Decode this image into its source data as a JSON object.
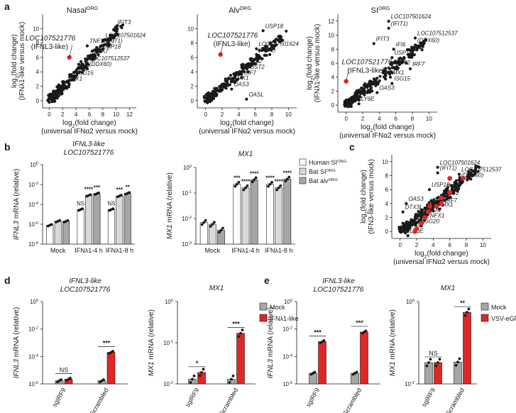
{
  "panel_letters": [
    "a",
    "b",
    "c",
    "d",
    "e"
  ],
  "colors": {
    "point": "#1a1a1a",
    "highlight": "#e02727",
    "mock": "#a6a6a6",
    "treated": "#e02727",
    "human": "#ffffff",
    "bat_si": "#d9d9d9",
    "bat_alv": "#a6a6a6",
    "axis": "#1a1a1a"
  },
  "chart_data": [
    {
      "id": "a1",
      "type": "scatter",
      "title": "Nasal",
      "title_sup": "ORG",
      "xlabel": [
        "log2(fold change)",
        "(universal IFNα2 versus mock)"
      ],
      "ylabel": [
        "log2(fold change)",
        "(IFNλ1-like versus mock)"
      ],
      "xlim": [
        -1,
        13
      ],
      "ylim": [
        -1,
        12
      ],
      "xticks": [
        0,
        2,
        4,
        6,
        8,
        10,
        12
      ],
      "yticks": [
        0,
        2,
        4,
        6,
        8,
        10
      ],
      "highlight": {
        "x": 3.0,
        "y": 6.0,
        "label": "LOC107521776",
        "label2": "(IFNL3-like)"
      },
      "labels": [
        {
          "text": "IFIT3",
          "x": 10.2,
          "y": 10.6
        },
        {
          "text": "TNFSF10",
          "x": 6.0,
          "y": 8.0
        },
        {
          "text": "LOC107501624",
          "x": 8.4,
          "y": 8.8
        },
        {
          "text": "(IFIT1)",
          "x": 8.4,
          "y": 8.0
        },
        {
          "text": "USP18",
          "x": 8.0,
          "y": 7.2
        },
        {
          "text": "UBA7",
          "x": 6.6,
          "y": 6.6
        },
        {
          "text": "LOC107512537",
          "x": 6.0,
          "y": 5.6
        },
        {
          "text": "IRF7",
          "x": 4.2,
          "y": 4.4
        },
        {
          "text": "(DDX60)",
          "x": 6.0,
          "y": 4.8
        },
        {
          "text": "ISG15",
          "x": 4.2,
          "y": 3.6
        },
        {
          "text": "MX1",
          "x": 3.2,
          "y": 2.8
        }
      ]
    },
    {
      "id": "a2",
      "type": "scatter",
      "title": "Alv",
      "title_sup": "ORG",
      "xlabel": [
        "log2(fold change)",
        "(universal IFNα2 versus mock)"
      ],
      "ylabel": [],
      "xlim": [
        -1,
        11
      ],
      "ylim": [
        -1,
        12
      ],
      "xticks": [
        0,
        2,
        4,
        6,
        8,
        10
      ],
      "yticks": [
        0,
        2,
        4,
        6,
        8,
        10
      ],
      "highlight": {
        "x": 1.8,
        "y": 6.4,
        "label": "LOC107521776",
        "label2": "(IFNL3-like)"
      },
      "labels": [
        {
          "text": "USP18",
          "x": 7.2,
          "y": 10.1
        },
        {
          "text": "LOC107501624",
          "x": 6.4,
          "y": 7.6
        },
        {
          "text": "(IFIT1)",
          "x": 6.4,
          "y": 6.8
        },
        {
          "text": "MX2",
          "x": 5.4,
          "y": 5.2
        },
        {
          "text": "BST2",
          "x": 5.4,
          "y": 4.4
        },
        {
          "text": "IRF7",
          "x": 4.6,
          "y": 3.6
        },
        {
          "text": "MX1",
          "x": 3.8,
          "y": 2.9
        },
        {
          "text": "OAS3",
          "x": 3.4,
          "y": 2.0
        },
        {
          "text": "OASL",
          "x": 5.2,
          "y": 0.6
        }
      ]
    },
    {
      "id": "a3",
      "type": "scatter",
      "title": "SI",
      "title_sup": "ORG",
      "xlabel": [
        "log2(fold change)",
        "(universal IFNα2 versus mock)"
      ],
      "ylabel": [
        "log2(fold change)",
        "(IFNλ1-like versus mock)"
      ],
      "xlim": [
        -1,
        11
      ],
      "ylim": [
        -1,
        13
      ],
      "xticks": [
        0,
        2,
        4,
        6,
        8,
        10
      ],
      "yticks": [
        0,
        2,
        4,
        6,
        8,
        10,
        12
      ],
      "highlight": {
        "x": 0.0,
        "y": 3.4,
        "label": "LOC107521776",
        "label2": "(IFNL3-like)"
      },
      "labels": [
        {
          "text": "LOC107501624",
          "x": 5.4,
          "y": 12.4
        },
        {
          "text": "(IFIT1)",
          "x": 5.4,
          "y": 11.4
        },
        {
          "text": "LOC107512537",
          "x": 8.6,
          "y": 10.0
        },
        {
          "text": "(DDX60)",
          "x": 8.6,
          "y": 9.0
        },
        {
          "text": "IFIT3",
          "x": 3.6,
          "y": 9.2
        },
        {
          "text": "IFI6",
          "x": 6.0,
          "y": 8.4
        },
        {
          "text": "USP18",
          "x": 5.8,
          "y": 7.2
        },
        {
          "text": "BST2",
          "x": 6.0,
          "y": 5.8
        },
        {
          "text": "IRF7",
          "x": 8.0,
          "y": 5.6
        },
        {
          "text": "MX1",
          "x": 5.6,
          "y": 4.4
        },
        {
          "text": "ISG15",
          "x": 5.8,
          "y": 3.5
        },
        {
          "text": "OAS3",
          "x": 4.0,
          "y": 2.2
        },
        {
          "text": "LY6E",
          "x": 1.8,
          "y": 0.6
        }
      ]
    },
    {
      "id": "b1",
      "type": "bar",
      "log_scale": true,
      "title": [
        "IFNL3-like",
        "LOC107521776"
      ],
      "ylabel": "IFNL3 mRNA (relative)",
      "ylim_exp": [
        -8,
        0
      ],
      "yticks_exp": [
        -8,
        -6,
        -4,
        -2,
        0
      ],
      "categories": [
        "Mock",
        "IFNλ1-4 h",
        "IFNλ1-8 h"
      ],
      "series": [
        {
          "name": "Human SI",
          "name_sup": "ORG",
          "values": [
            8e-07,
            3e-05,
            3e-05
          ]
        },
        {
          "name": "Bat SI",
          "name_sup": "ORG",
          "values": [
            2e-06,
            0.0008,
            0.0007
          ]
        },
        {
          "name": "Bat alv",
          "name_sup": "ORG",
          "values": [
            2e-06,
            0.0012,
            0.0013
          ]
        }
      ],
      "significance": [
        [
          "",
          "",
          ""
        ],
        [
          "NS",
          "****",
          "***"
        ],
        [
          "NS",
          "***",
          "**"
        ]
      ]
    },
    {
      "id": "b2",
      "type": "bar",
      "log_scale": true,
      "title": [
        "MX1"
      ],
      "ylabel": "MX1 mRNA (relative)",
      "ylim_exp": [
        -3,
        0
      ],
      "yticks_exp": [
        -3,
        -2,
        -1,
        0
      ],
      "categories": [
        "Mock",
        "IFNλ1-4 h",
        "IFNλ1-8 h"
      ],
      "series": [
        {
          "name": "Human SI",
          "name_sup": "ORG",
          "values": [
            0.007,
            0.22,
            0.22
          ]
        },
        {
          "name": "Bat SI",
          "name_sup": "ORG",
          "values": [
            0.006,
            0.16,
            0.16
          ]
        },
        {
          "name": "Bat alv",
          "name_sup": "ORG",
          "values": [
            0.0035,
            0.33,
            0.35
          ]
        }
      ],
      "significance": [
        [
          "",
          "",
          ""
        ],
        [
          "***",
          "****",
          "****"
        ],
        [
          "****",
          "****",
          "****"
        ]
      ]
    },
    {
      "id": "c",
      "type": "scatter",
      "title": "",
      "xlabel": [
        "log2(fold change)",
        "(universal IFNα2 versus mock)"
      ],
      "ylabel": [
        "log2(fold change)",
        "(IFN3-like versus mock)"
      ],
      "xlim": [
        -1,
        11
      ],
      "ylim": [
        -1,
        11
      ],
      "xticks": [
        0,
        2,
        4,
        6,
        8,
        10
      ],
      "yticks": [
        0,
        2,
        4,
        6,
        8,
        10
      ],
      "red_points": [
        {
          "x": 6.0,
          "y": 7.6
        },
        {
          "x": 7.6,
          "y": 7.6
        },
        {
          "x": 6.0,
          "y": 5.6
        },
        {
          "x": 5.0,
          "y": 4.8
        },
        {
          "x": 5.0,
          "y": 4.0
        },
        {
          "x": 4.4,
          "y": 3.6
        },
        {
          "x": 3.6,
          "y": 3.6
        },
        {
          "x": 3.4,
          "y": 2.8
        },
        {
          "x": 3.0,
          "y": 2.0
        },
        {
          "x": 2.6,
          "y": 1.2
        },
        {
          "x": 2.0,
          "y": 0.4
        },
        {
          "x": 1.8,
          "y": 0.0
        }
      ],
      "labels": [
        {
          "text": "LOC107501624",
          "x": 4.8,
          "y": 9.6
        },
        {
          "text": "(IFIT1)",
          "x": 4.8,
          "y": 8.8
        },
        {
          "text": "LOC107512537",
          "x": 7.4,
          "y": 8.6
        },
        {
          "text": "(DDX60)",
          "x": 7.4,
          "y": 7.8
        },
        {
          "text": "USP18",
          "x": 3.8,
          "y": 6.4
        },
        {
          "text": "IFI6",
          "x": 5.6,
          "y": 6.2
        },
        {
          "text": "BST2",
          "x": 5.4,
          "y": 5.2
        },
        {
          "text": "OAS3",
          "x": 1.0,
          "y": 4.4
        },
        {
          "text": "IRF7",
          "x": 5.4,
          "y": 4.2
        },
        {
          "text": "MX1",
          "x": 5.0,
          "y": 3.6
        },
        {
          "text": "DTX3L",
          "x": 0.6,
          "y": 3.2
        },
        {
          "text": "MX2",
          "x": 3.6,
          "y": 2.8
        },
        {
          "text": "ZNFX1",
          "x": 3.2,
          "y": 2.0
        },
        {
          "text": "ISG20",
          "x": 2.8,
          "y": 1.2
        },
        {
          "text": "IFI35",
          "x": 1.2,
          "y": 0.6
        },
        {
          "text": "LY6E",
          "x": 1.2,
          "y": -0.2
        }
      ]
    },
    {
      "id": "d1",
      "type": "bar",
      "log_scale": true,
      "title": [
        "IFNL3-like",
        "LOC107521776"
      ],
      "ylabel": "IFNL3 mRNA (relative)",
      "ylim_exp": [
        -6,
        0
      ],
      "yticks_exp": [
        -6,
        -4,
        -2,
        0
      ],
      "categories": [
        "sgIRF9",
        "sgScrambled"
      ],
      "series": [
        {
          "name": "Mock",
          "values": [
            1.7e-06,
            1.7e-06
          ]
        },
        {
          "name": "IFNλ1-like",
          "values": [
            2.2e-06,
            0.0002
          ]
        }
      ],
      "significance": [
        "NS",
        "***"
      ]
    },
    {
      "id": "d2",
      "type": "bar",
      "log_scale": true,
      "title": [
        "MX1"
      ],
      "ylabel": "MX1 mRNA (relative)",
      "ylim_exp": [
        -2,
        0
      ],
      "yticks_exp": [
        -2,
        -1,
        0
      ],
      "categories": [
        "sgIRF9",
        "sgScrambled"
      ],
      "series": [
        {
          "name": "Mock",
          "values": [
            0.013,
            0.013
          ]
        },
        {
          "name": "IFNλ1-like",
          "values": [
            0.019,
            0.17
          ]
        }
      ],
      "significance": [
        "*",
        "***"
      ],
      "legend": [
        "Mock",
        "IFNλ1-like"
      ]
    },
    {
      "id": "e1",
      "type": "bar",
      "log_scale": true,
      "title": [
        "IFNL3-like",
        "LOC107521776"
      ],
      "ylabel": "IFNL3 mRNA (relative)",
      "ylim_exp": [
        -6,
        0
      ],
      "yticks_exp": [
        -6,
        -4,
        -2,
        0
      ],
      "categories": [
        "sgIRF9",
        "sgScrambled"
      ],
      "series": [
        {
          "name": "Mock",
          "values": [
            6e-06,
            6e-06
          ]
        },
        {
          "name": "VSV-eGFP",
          "values": [
            0.0012,
            0.006
          ]
        }
      ],
      "significance": [
        "***",
        "***"
      ]
    },
    {
      "id": "e2",
      "type": "bar",
      "log_scale": true,
      "title": [
        "MX1"
      ],
      "ylabel": "MX1 mRNA (relative)",
      "ylim_exp": [
        -2,
        0
      ],
      "yticks_exp": [
        -2,
        0
      ],
      "categories": [
        "sgIRF9",
        "sgScrambled"
      ],
      "series": [
        {
          "name": "Mock",
          "values": [
            0.033,
            0.034
          ]
        },
        {
          "name": "VSV-eGFP",
          "values": [
            0.033,
            0.55
          ]
        }
      ],
      "significance": [
        "NS",
        "**"
      ],
      "legend": [
        "Mock",
        "VSV-eGFP"
      ]
    }
  ]
}
